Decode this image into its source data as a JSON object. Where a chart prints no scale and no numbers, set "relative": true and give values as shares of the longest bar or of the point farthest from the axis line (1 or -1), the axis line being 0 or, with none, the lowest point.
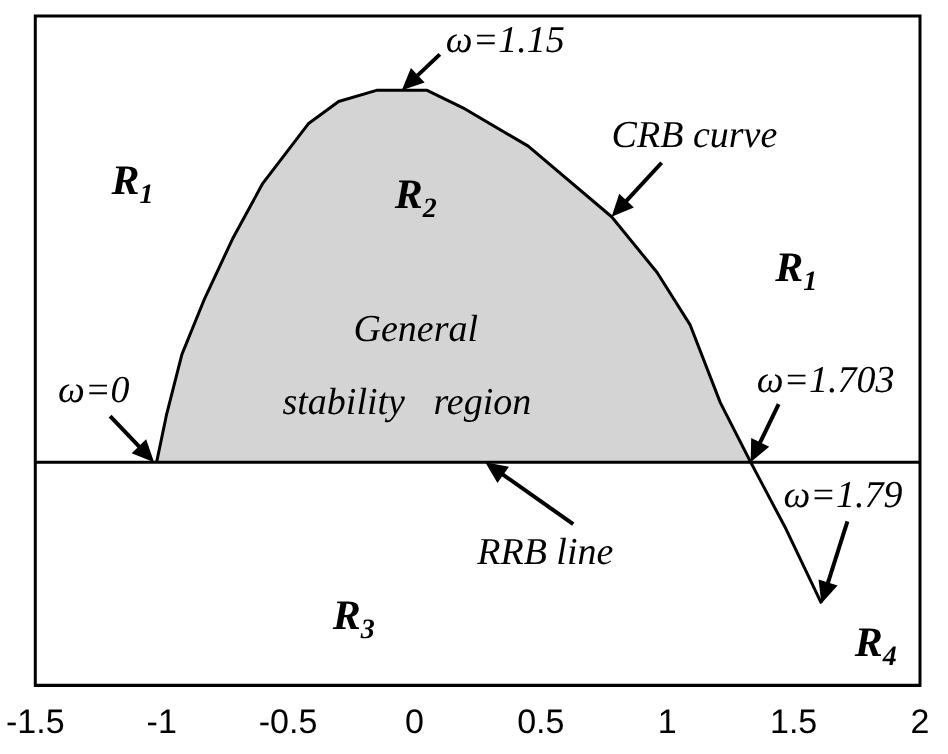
{
  "chart_data": {
    "type": "area",
    "relative": true,
    "xlim": [
      -1.5,
      2
    ],
    "xticks": [
      -1.5,
      -1,
      -0.5,
      0,
      0.5,
      1,
      1.5,
      2
    ],
    "grid": false,
    "legend": false,
    "tick_labels": "x",
    "x": [
      -1.02,
      -0.98,
      -0.92,
      -0.83,
      -0.72,
      -0.6,
      -0.42,
      -0.3,
      -0.15,
      -0.05,
      0.05,
      0.2,
      0.45,
      0.78,
      0.96,
      1.09,
      1.21,
      1.33,
      1.47,
      1.61
    ],
    "series": [
      {
        "color": "#000000",
        "values": [
          0,
          0.13,
          0.29,
          0.44,
          0.6,
          0.75,
          0.91,
          0.97,
          1,
          1,
          1,
          0.95,
          0.85,
          0.66,
          0.51,
          0.37,
          0.16,
          0,
          -0.18,
          -0.38
        ]
      }
    ],
    "ref_lines": [
      {
        "axis": "y",
        "value": 0,
        "color": "#000000"
      }
    ],
    "annotations": [
      {
        "text": "ω=1.15",
        "x": -0.05,
        "y": 1
      },
      {
        "text": "CRB curve",
        "x": 0.78,
        "y": 0.66
      },
      {
        "text": "ω=0",
        "x": -1.03,
        "y": 0
      },
      {
        "text": "ω=1.703",
        "x": 1.33,
        "y": 0
      },
      {
        "text": "RRB line",
        "x": 0.28,
        "y": 0
      },
      {
        "text": "ω=1.79",
        "x": 1.61,
        "y": -0.38
      },
      "R$_{1}$",
      "R$_{2}$",
      "R$_{1}$",
      "R$_{3}$",
      "R$_{4}$",
      "General",
      "stability   region"
    ]
  }
}
